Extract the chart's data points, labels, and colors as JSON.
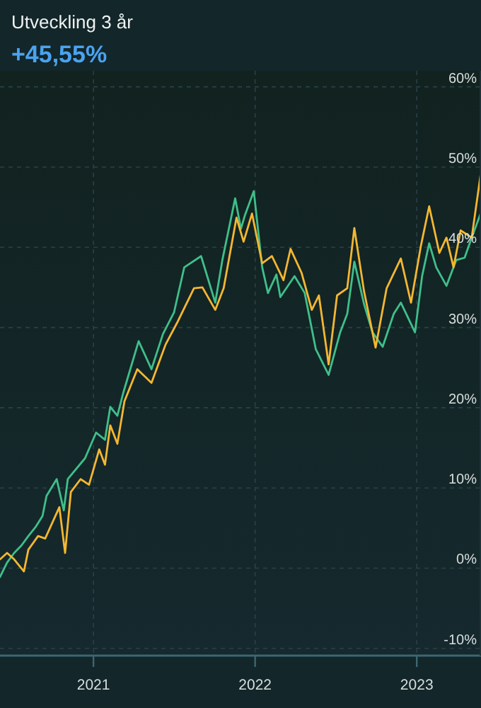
{
  "chart_data": {
    "type": "line",
    "title": "Utveckling 3 år",
    "subtitle": "+45,55%",
    "xlim": [
      "2020-06-04",
      "2023-05-26"
    ],
    "xticks": [
      "2021",
      "2022",
      "2023"
    ],
    "ylim": [
      -10.9,
      62
    ],
    "yticks": [
      {
        "value": -10,
        "label": "-10%"
      },
      {
        "value": 0,
        "label": "0%"
      },
      {
        "value": 10,
        "label": "10%"
      },
      {
        "value": 20,
        "label": "20%"
      },
      {
        "value": 30,
        "label": "30%"
      },
      {
        "value": 40,
        "label": "40%"
      },
      {
        "value": 50,
        "label": "50%"
      },
      {
        "value": 60,
        "label": "60%"
      }
    ],
    "grid": true,
    "marker": "none",
    "line_style": "solid",
    "series": [
      {
        "color": "#3fbf8a",
        "x": [
          "2020-06-04",
          "2020-06-20",
          "2020-07-06",
          "2020-07-22",
          "2020-08-07",
          "2020-08-23",
          "2020-09-08",
          "2020-09-17",
          "2020-10-10",
          "2020-10-26",
          "2020-11-04",
          "2020-12-13",
          "2021-01-07",
          "2021-01-27",
          "2021-02-08",
          "2021-02-24",
          "2021-03-09",
          "2021-04-13",
          "2021-05-12",
          "2021-06-07",
          "2021-07-02",
          "2021-07-25",
          "2021-09-01",
          "2021-10-03",
          "2021-10-19",
          "2021-11-17",
          "2021-11-30",
          "2021-12-09",
          "2021-12-29",
          "2022-01-17",
          "2022-01-30",
          "2022-02-18",
          "2022-02-27",
          "2022-03-31",
          "2022-04-23",
          "2022-05-18",
          "2022-06-16",
          "2022-07-12",
          "2022-07-28",
          "2022-08-13",
          "2022-09-04",
          "2022-09-23",
          "2022-10-16",
          "2022-11-10",
          "2022-11-26",
          "2022-12-28",
          "2023-01-13",
          "2023-01-29",
          "2023-02-14",
          "2023-03-09",
          "2023-03-31",
          "2023-04-19",
          "2023-05-05",
          "2023-05-25"
        ],
        "values": [
          -1.1,
          0.7,
          1.9,
          2.8,
          4.0,
          5.1,
          6.5,
          9.0,
          11.1,
          7.2,
          11.1,
          13.7,
          16.9,
          16.0,
          20.1,
          19.0,
          21.8,
          28.3,
          24.8,
          29.2,
          31.9,
          37.5,
          38.9,
          33.1,
          38.4,
          46.1,
          42.3,
          44.0,
          47.0,
          37.5,
          34.3,
          36.6,
          33.8,
          36.4,
          34.3,
          27.3,
          24.1,
          29.4,
          31.7,
          38.2,
          32.9,
          29.4,
          27.6,
          31.7,
          33.1,
          29.4,
          36.4,
          40.5,
          37.5,
          35.2,
          38.4,
          38.7,
          41.2,
          44.2
        ]
      },
      {
        "color": "#f5b731",
        "x": [
          "2020-06-04",
          "2020-06-20",
          "2020-07-06",
          "2020-07-28",
          "2020-08-07",
          "2020-08-29",
          "2020-09-14",
          "2020-10-16",
          "2020-10-29",
          "2020-11-11",
          "2020-12-03",
          "2020-12-22",
          "2021-01-14",
          "2021-01-27",
          "2021-02-08",
          "2021-02-24",
          "2021-03-12",
          "2021-04-10",
          "2021-05-12",
          "2021-06-13",
          "2021-07-09",
          "2021-08-16",
          "2021-09-04",
          "2021-10-03",
          "2021-10-22",
          "2021-11-20",
          "2021-12-06",
          "2021-12-25",
          "2022-01-17",
          "2022-02-08",
          "2022-03-06",
          "2022-03-22",
          "2022-04-16",
          "2022-05-09",
          "2022-05-25",
          "2022-06-16",
          "2022-07-05",
          "2022-07-28",
          "2022-08-13",
          "2022-09-04",
          "2022-09-30",
          "2022-10-25",
          "2022-11-26",
          "2022-12-19",
          "2023-01-10",
          "2023-01-29",
          "2023-02-21",
          "2023-03-09",
          "2023-03-25",
          "2023-04-10",
          "2023-05-05",
          "2023-05-25"
        ],
        "values": [
          1.1,
          1.9,
          1.1,
          -0.4,
          2.3,
          4.0,
          3.7,
          7.6,
          1.9,
          9.5,
          11.1,
          10.4,
          14.8,
          12.9,
          17.8,
          15.5,
          20.8,
          24.8,
          23.1,
          27.9,
          30.6,
          34.9,
          35.0,
          32.2,
          34.9,
          43.7,
          40.7,
          44.2,
          38.0,
          38.9,
          35.9,
          39.8,
          36.8,
          32.2,
          34.0,
          25.4,
          34.0,
          34.9,
          42.4,
          34.5,
          27.5,
          34.9,
          38.6,
          33.1,
          40.1,
          45.1,
          39.3,
          41.2,
          37.5,
          42.1,
          41.2,
          49.0
        ]
      }
    ]
  }
}
